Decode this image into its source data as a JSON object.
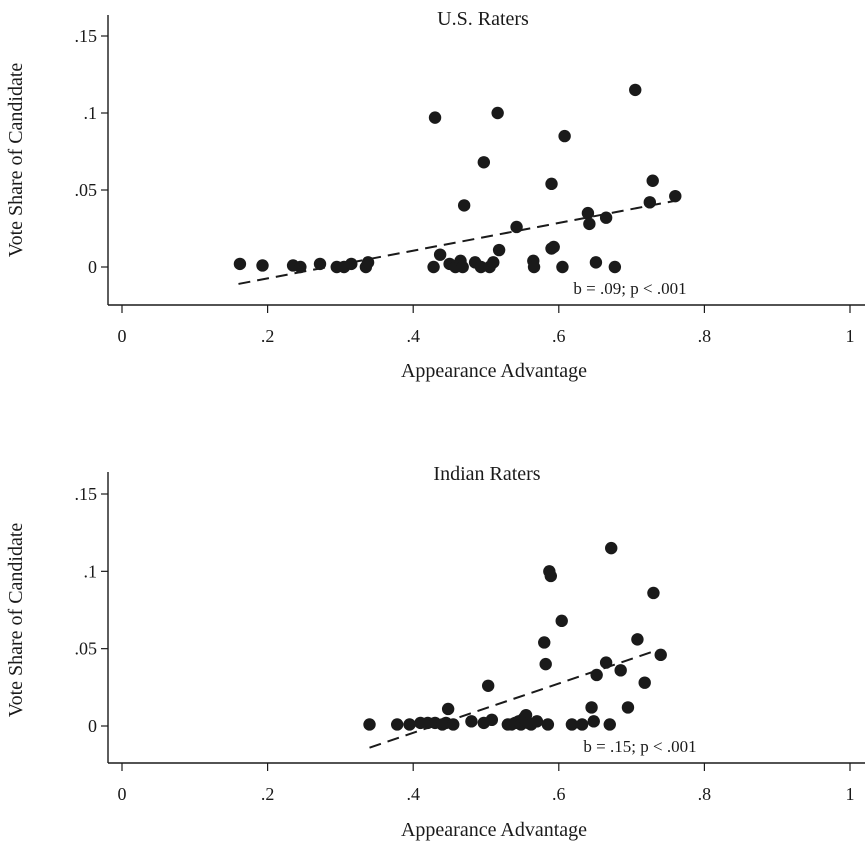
{
  "chart_data": [
    {
      "type": "scatter",
      "title": "U.S. Raters",
      "xlabel": "Appearance Advantage",
      "ylabel": "Vote Share of Candidate",
      "xlim": [
        0,
        1
      ],
      "ylim": [
        -0.02,
        0.16
      ],
      "x_ticks": [
        "0",
        ".2",
        ".4",
        ".6",
        ".8",
        "1"
      ],
      "x_tick_values": [
        0,
        0.2,
        0.4,
        0.6,
        0.8,
        1
      ],
      "y_ticks": [
        "0",
        ".05",
        ".1",
        ".15"
      ],
      "y_tick_values": [
        0,
        0.05,
        0.1,
        0.15
      ],
      "annotation": "b = .09; p < .001",
      "fit_line": {
        "x": [
          0.16,
          0.76
        ],
        "y": [
          -0.011,
          0.043
        ]
      },
      "points": [
        {
          "x": 0.162,
          "y": 0.002
        },
        {
          "x": 0.193,
          "y": 0.001
        },
        {
          "x": 0.235,
          "y": 0.001
        },
        {
          "x": 0.245,
          "y": 0.0
        },
        {
          "x": 0.272,
          "y": 0.002
        },
        {
          "x": 0.295,
          "y": 0.0
        },
        {
          "x": 0.305,
          "y": 0.0
        },
        {
          "x": 0.315,
          "y": 0.002
        },
        {
          "x": 0.335,
          "y": 0.0
        },
        {
          "x": 0.338,
          "y": 0.003
        },
        {
          "x": 0.428,
          "y": 0.0
        },
        {
          "x": 0.43,
          "y": 0.097
        },
        {
          "x": 0.437,
          "y": 0.008
        },
        {
          "x": 0.45,
          "y": 0.002
        },
        {
          "x": 0.458,
          "y": 0.0
        },
        {
          "x": 0.465,
          "y": 0.004
        },
        {
          "x": 0.468,
          "y": 0.0
        },
        {
          "x": 0.47,
          "y": 0.04
        },
        {
          "x": 0.485,
          "y": 0.003
        },
        {
          "x": 0.493,
          "y": 0.0
        },
        {
          "x": 0.497,
          "y": 0.068
        },
        {
          "x": 0.505,
          "y": 0.0
        },
        {
          "x": 0.51,
          "y": 0.003
        },
        {
          "x": 0.516,
          "y": 0.1
        },
        {
          "x": 0.518,
          "y": 0.011
        },
        {
          "x": 0.542,
          "y": 0.026
        },
        {
          "x": 0.565,
          "y": 0.004
        },
        {
          "x": 0.566,
          "y": 0.0
        },
        {
          "x": 0.59,
          "y": 0.054
        },
        {
          "x": 0.59,
          "y": 0.012
        },
        {
          "x": 0.593,
          "y": 0.013
        },
        {
          "x": 0.605,
          "y": 0.0
        },
        {
          "x": 0.608,
          "y": 0.085
        },
        {
          "x": 0.64,
          "y": 0.035
        },
        {
          "x": 0.642,
          "y": 0.028
        },
        {
          "x": 0.651,
          "y": 0.003
        },
        {
          "x": 0.665,
          "y": 0.032
        },
        {
          "x": 0.677,
          "y": 0.0
        },
        {
          "x": 0.705,
          "y": 0.115
        },
        {
          "x": 0.725,
          "y": 0.042
        },
        {
          "x": 0.729,
          "y": 0.056
        },
        {
          "x": 0.76,
          "y": 0.046
        }
      ]
    },
    {
      "type": "scatter",
      "title": "Indian Raters",
      "xlabel": "Appearance Advantage",
      "ylabel": "Vote Share of Candidate",
      "xlim": [
        0,
        1
      ],
      "ylim": [
        -0.02,
        0.16
      ],
      "x_ticks": [
        "0",
        ".2",
        ".4",
        ".6",
        ".8",
        "1"
      ],
      "x_tick_values": [
        0,
        0.2,
        0.4,
        0.6,
        0.8,
        1
      ],
      "y_ticks": [
        "0",
        ".05",
        ".1",
        ".15"
      ],
      "y_tick_values": [
        0,
        0.05,
        0.1,
        0.15
      ],
      "annotation": "b = .15; p < .001",
      "fit_line": {
        "x": [
          0.34,
          0.735
        ],
        "y": [
          -0.014,
          0.049
        ]
      },
      "points": [
        {
          "x": 0.34,
          "y": 0.001
        },
        {
          "x": 0.378,
          "y": 0.001
        },
        {
          "x": 0.395,
          "y": 0.001
        },
        {
          "x": 0.41,
          "y": 0.002
        },
        {
          "x": 0.42,
          "y": 0.002
        },
        {
          "x": 0.43,
          "y": 0.002
        },
        {
          "x": 0.44,
          "y": 0.001
        },
        {
          "x": 0.445,
          "y": 0.002
        },
        {
          "x": 0.448,
          "y": 0.011
        },
        {
          "x": 0.455,
          "y": 0.001
        },
        {
          "x": 0.48,
          "y": 0.003
        },
        {
          "x": 0.497,
          "y": 0.002
        },
        {
          "x": 0.503,
          "y": 0.026
        },
        {
          "x": 0.508,
          "y": 0.004
        },
        {
          "x": 0.53,
          "y": 0.001
        },
        {
          "x": 0.535,
          "y": 0.001
        },
        {
          "x": 0.54,
          "y": 0.002
        },
        {
          "x": 0.545,
          "y": 0.003
        },
        {
          "x": 0.548,
          "y": 0.001
        },
        {
          "x": 0.552,
          "y": 0.005
        },
        {
          "x": 0.555,
          "y": 0.007
        },
        {
          "x": 0.558,
          "y": 0.002
        },
        {
          "x": 0.562,
          "y": 0.001
        },
        {
          "x": 0.57,
          "y": 0.003
        },
        {
          "x": 0.58,
          "y": 0.054
        },
        {
          "x": 0.582,
          "y": 0.04
        },
        {
          "x": 0.585,
          "y": 0.001
        },
        {
          "x": 0.587,
          "y": 0.1
        },
        {
          "x": 0.589,
          "y": 0.097
        },
        {
          "x": 0.604,
          "y": 0.068
        },
        {
          "x": 0.618,
          "y": 0.001
        },
        {
          "x": 0.632,
          "y": 0.001
        },
        {
          "x": 0.645,
          "y": 0.012
        },
        {
          "x": 0.648,
          "y": 0.003
        },
        {
          "x": 0.652,
          "y": 0.033
        },
        {
          "x": 0.665,
          "y": 0.041
        },
        {
          "x": 0.67,
          "y": 0.001
        },
        {
          "x": 0.672,
          "y": 0.115
        },
        {
          "x": 0.685,
          "y": 0.036
        },
        {
          "x": 0.695,
          "y": 0.012
        },
        {
          "x": 0.708,
          "y": 0.056
        },
        {
          "x": 0.718,
          "y": 0.028
        },
        {
          "x": 0.73,
          "y": 0.086
        },
        {
          "x": 0.74,
          "y": 0.046
        }
      ]
    }
  ]
}
